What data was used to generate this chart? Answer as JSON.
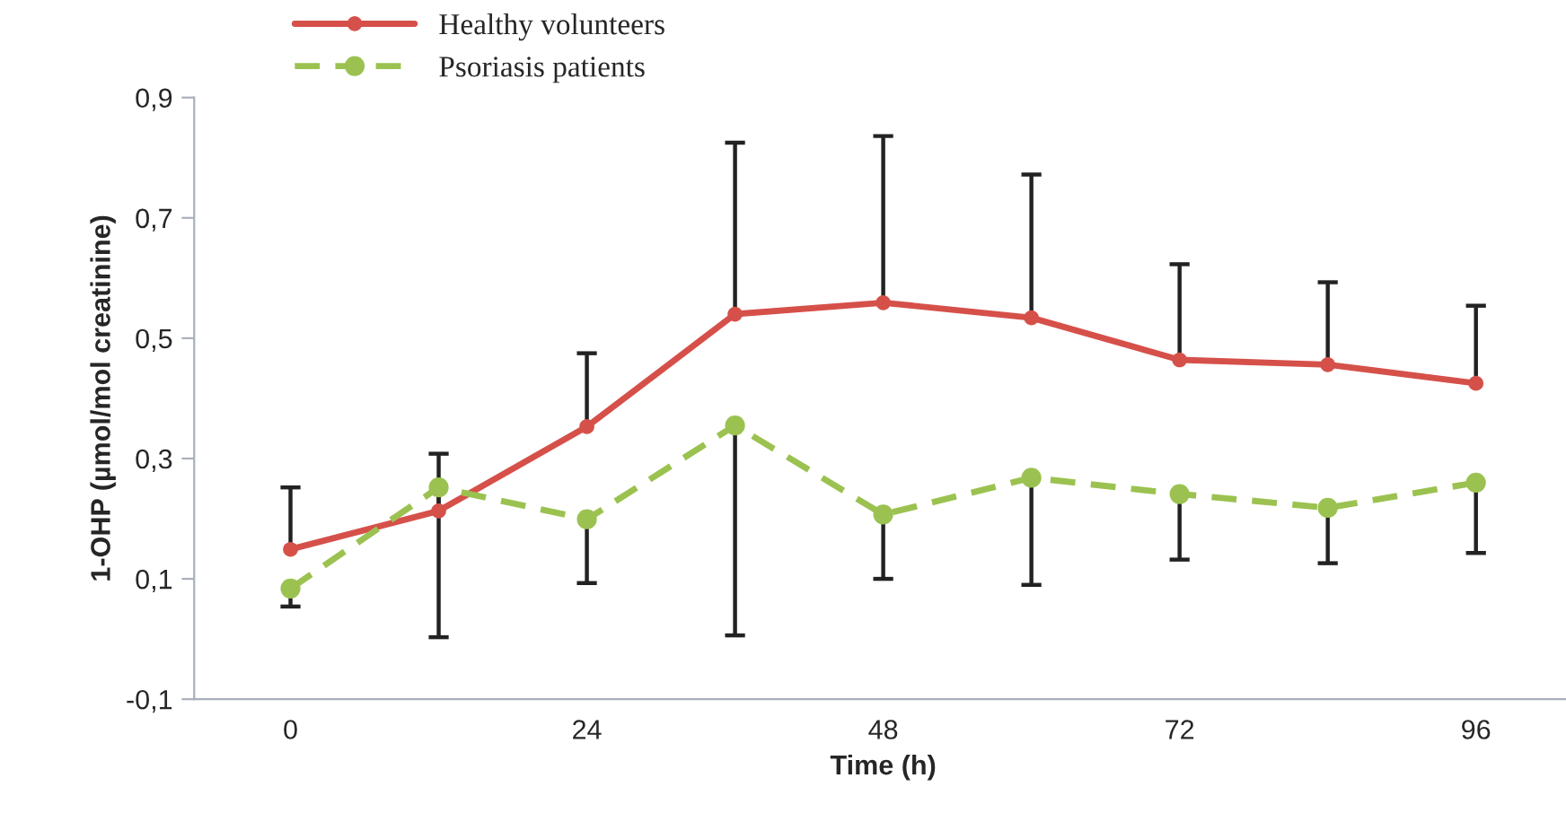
{
  "chart_data": {
    "type": "line",
    "xlabel": "Time (h)",
    "ylabel": "1-OHP (µmol/mol creatinine)",
    "categories": [
      "0",
      null,
      "24",
      null,
      "48",
      null,
      "72",
      null,
      "96"
    ],
    "ylim": [
      -0.1,
      0.9
    ],
    "yticks": [
      {
        "value": -0.1,
        "label": "-0,1"
      },
      {
        "value": 0.1,
        "label": "0,1"
      },
      {
        "value": 0.3,
        "label": "0,3"
      },
      {
        "value": 0.5,
        "label": "0,5"
      },
      {
        "value": 0.7,
        "label": "0,7"
      },
      {
        "value": 0.9,
        "label": "0,9"
      }
    ],
    "grid": false,
    "legend": "top left",
    "marker": "circle",
    "series": [
      {
        "name": "Healthy volunteers",
        "color": "#d6504a",
        "line_style": "solid",
        "values": [
          0.149,
          0.213,
          0.353,
          0.54,
          0.559,
          0.534,
          0.464,
          0.456,
          0.425
        ],
        "errors": [
          [
            0.149,
            0.252
          ],
          [
            0.213,
            0.308
          ],
          [
            0.353,
            0.475
          ],
          [
            0.54,
            0.825
          ],
          [
            0.559,
            0.836
          ],
          [
            0.534,
            0.772
          ],
          [
            0.464,
            0.623
          ],
          [
            0.456,
            0.593
          ],
          [
            0.425,
            0.554
          ]
        ]
      },
      {
        "name": "Psoriasis patients",
        "color": "#9bc250",
        "line_style": "dashed",
        "values": [
          0.084,
          0.252,
          0.199,
          0.355,
          0.207,
          0.268,
          0.241,
          0.218,
          0.26
        ],
        "errors": [
          [
            0.054,
            0.084
          ],
          [
            0.003,
            0.252
          ],
          [
            0.093,
            0.199
          ],
          [
            0.006,
            0.355
          ],
          [
            0.1,
            0.207
          ],
          [
            0.09,
            0.268
          ],
          [
            0.132,
            0.241
          ],
          [
            0.126,
            0.218
          ],
          [
            0.143,
            0.26
          ]
        ]
      }
    ]
  }
}
